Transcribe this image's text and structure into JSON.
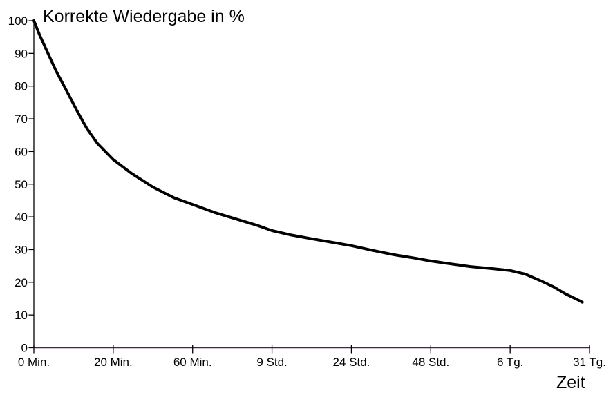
{
  "chart_data": {
    "type": "line",
    "title": "Korrekte Wiedergabe in %",
    "xlabel": "Zeit",
    "ylabel": "Korrekte Wiedergabe in %",
    "categories": [
      "0 Min.",
      "20 Min.",
      "60 Min.",
      "9 Std.",
      "24 Std.",
      "48 Std.",
      "6 Tg.",
      "31 Tg."
    ],
    "values_at_ticks": [
      100,
      57.5,
      44,
      35.8,
      31.2,
      26.5,
      23.6,
      14
    ],
    "y_ticks": [
      0,
      10,
      20,
      30,
      40,
      50,
      60,
      70,
      80,
      90,
      100
    ],
    "ylim": [
      0,
      100
    ],
    "grid": false,
    "legend": false,
    "curve_color": "#000000",
    "x_axis_color": "#6E0A6E",
    "y_axis_color": "#000000",
    "background_color": "#FFFFFF",
    "curve_points": [
      [
        0.0,
        100.0
      ],
      [
        0.07,
        95.8
      ],
      [
        0.15,
        91.5
      ],
      [
        0.28,
        84.6
      ],
      [
        0.41,
        78.7
      ],
      [
        0.54,
        72.6
      ],
      [
        0.67,
        66.9
      ],
      [
        0.8,
        62.5
      ],
      [
        0.9,
        60.0
      ],
      [
        1.0,
        57.5
      ],
      [
        1.23,
        53.3
      ],
      [
        1.5,
        49.1
      ],
      [
        1.76,
        45.9
      ],
      [
        2.0,
        43.8
      ],
      [
        2.28,
        41.3
      ],
      [
        2.54,
        39.4
      ],
      [
        2.8,
        37.5
      ],
      [
        3.0,
        35.8
      ],
      [
        3.23,
        34.5
      ],
      [
        3.5,
        33.3
      ],
      [
        3.76,
        32.2
      ],
      [
        4.0,
        31.2
      ],
      [
        4.28,
        29.7
      ],
      [
        4.54,
        28.4
      ],
      [
        4.8,
        27.4
      ],
      [
        5.0,
        26.5
      ],
      [
        5.23,
        25.7
      ],
      [
        5.5,
        24.8
      ],
      [
        5.76,
        24.2
      ],
      [
        6.0,
        23.6
      ],
      [
        6.19,
        22.5
      ],
      [
        6.39,
        20.4
      ],
      [
        6.54,
        18.7
      ],
      [
        6.7,
        16.4
      ],
      [
        6.83,
        14.9
      ],
      [
        6.91,
        13.9
      ]
    ]
  }
}
